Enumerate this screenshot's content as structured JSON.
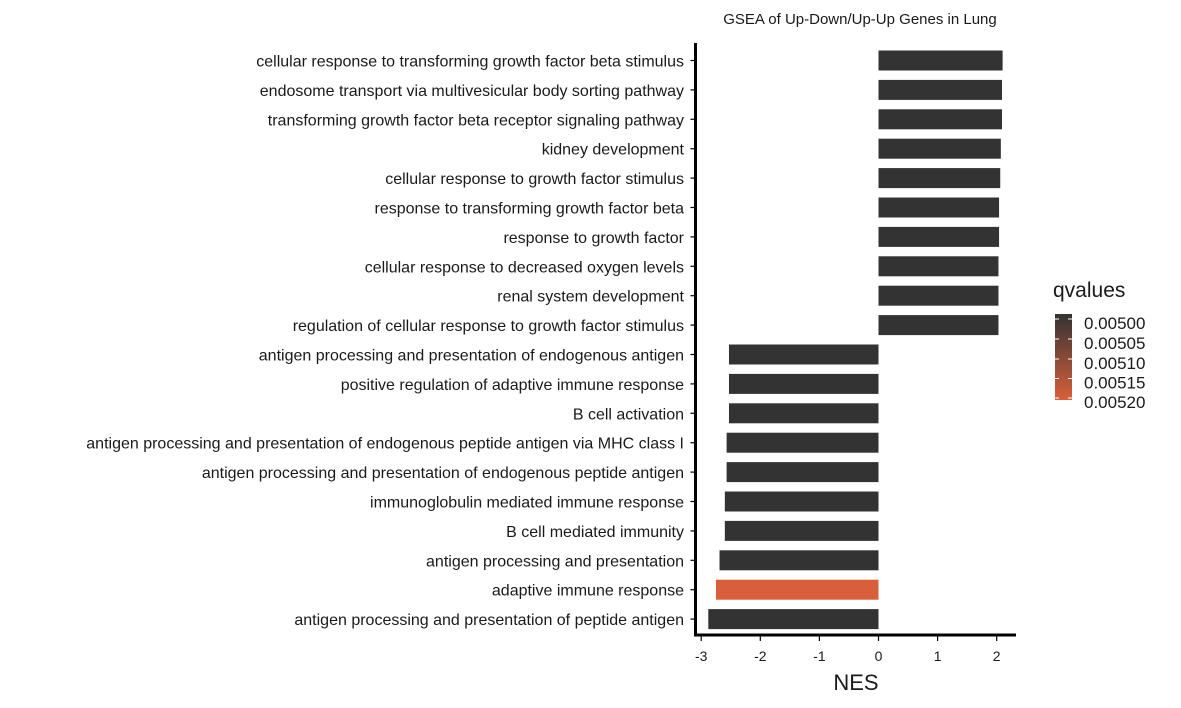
{
  "chart_data": {
    "type": "bar",
    "orientation": "horizontal",
    "title": "GSEA of Up-Down/Up-Up Genes in Lung",
    "xlabel": "NES",
    "ylabel": "",
    "xlim": [
      -3.05,
      2.35
    ],
    "x_ticks": [
      -3,
      -2,
      -1,
      0,
      1,
      2
    ],
    "x_tick_labels": [
      "-3",
      "-2",
      "-1",
      "0",
      "1",
      "2"
    ],
    "grid": false,
    "categories": [
      "cellular response to transforming growth factor beta stimulus",
      "endosome transport via multivesicular body sorting pathway",
      "transforming growth factor beta receptor signaling pathway",
      "kidney development",
      "cellular response to growth factor stimulus",
      "response to transforming growth factor beta",
      "response to growth factor",
      "cellular response to decreased oxygen levels",
      "renal system development",
      "regulation of cellular response to growth factor stimulus",
      "antigen processing and presentation of endogenous antigen",
      "positive regulation of adaptive immune response",
      "B cell activation",
      "antigen processing and presentation of endogenous peptide antigen via MHC class I",
      "antigen processing and presentation of endogenous peptide antigen",
      "immunoglobulin mediated immune response",
      "B cell mediated immunity",
      "antigen processing and presentation",
      "adaptive immune response",
      "antigen processing and presentation of peptide antigen"
    ],
    "values": [
      2.1,
      2.09,
      2.09,
      2.07,
      2.06,
      2.04,
      2.04,
      2.03,
      2.03,
      2.03,
      -2.53,
      -2.53,
      -2.53,
      -2.57,
      -2.57,
      -2.6,
      -2.6,
      -2.69,
      -2.75,
      -2.88
    ],
    "qvalues": [
      0.005,
      0.005,
      0.005,
      0.005,
      0.005,
      0.005,
      0.005,
      0.005,
      0.005,
      0.005,
      0.005,
      0.005,
      0.005,
      0.005,
      0.005,
      0.005,
      0.005,
      0.005,
      0.0052,
      0.005
    ],
    "legend": {
      "title": "qvalues",
      "placement": "right",
      "breaks": [
        "0.00500",
        "0.00505",
        "0.00510",
        "0.00515",
        "0.00520"
      ],
      "low_color": "#333333",
      "high_color": "#d95f3b",
      "range": [
        0.005,
        0.0052
      ]
    }
  }
}
